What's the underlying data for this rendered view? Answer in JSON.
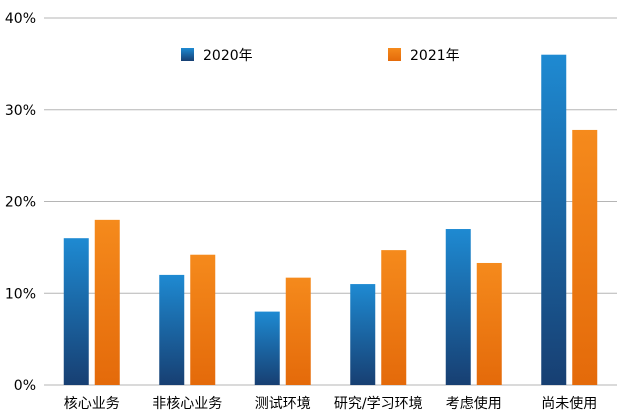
{
  "chart_data": {
    "type": "bar",
    "title": "",
    "xlabel": "",
    "ylabel": "",
    "categories": [
      "核心业务",
      "非核心业务",
      "测试环境",
      "研究/学习环境",
      "考虑使用",
      "尚未使用"
    ],
    "series": [
      {
        "name": "2020年",
        "values": [
          16,
          12,
          8,
          11,
          17,
          36
        ],
        "color": "#1060A8",
        "color_light": "#1E8AD2",
        "color_dark": "#173F72"
      },
      {
        "name": "2021年",
        "values": [
          18,
          14.2,
          11.7,
          14.7,
          13.3,
          27.8
        ],
        "color": "#F07A10",
        "color_light": "#F58A1C",
        "color_dark": "#E46A0A"
      }
    ],
    "ylim": [
      0,
      40
    ],
    "yticks": [
      0,
      10,
      20,
      30,
      40
    ],
    "ytick_labels": [
      "0%",
      "10%",
      "20%",
      "30%",
      "40%"
    ],
    "grid": true,
    "legend_position": "top"
  }
}
